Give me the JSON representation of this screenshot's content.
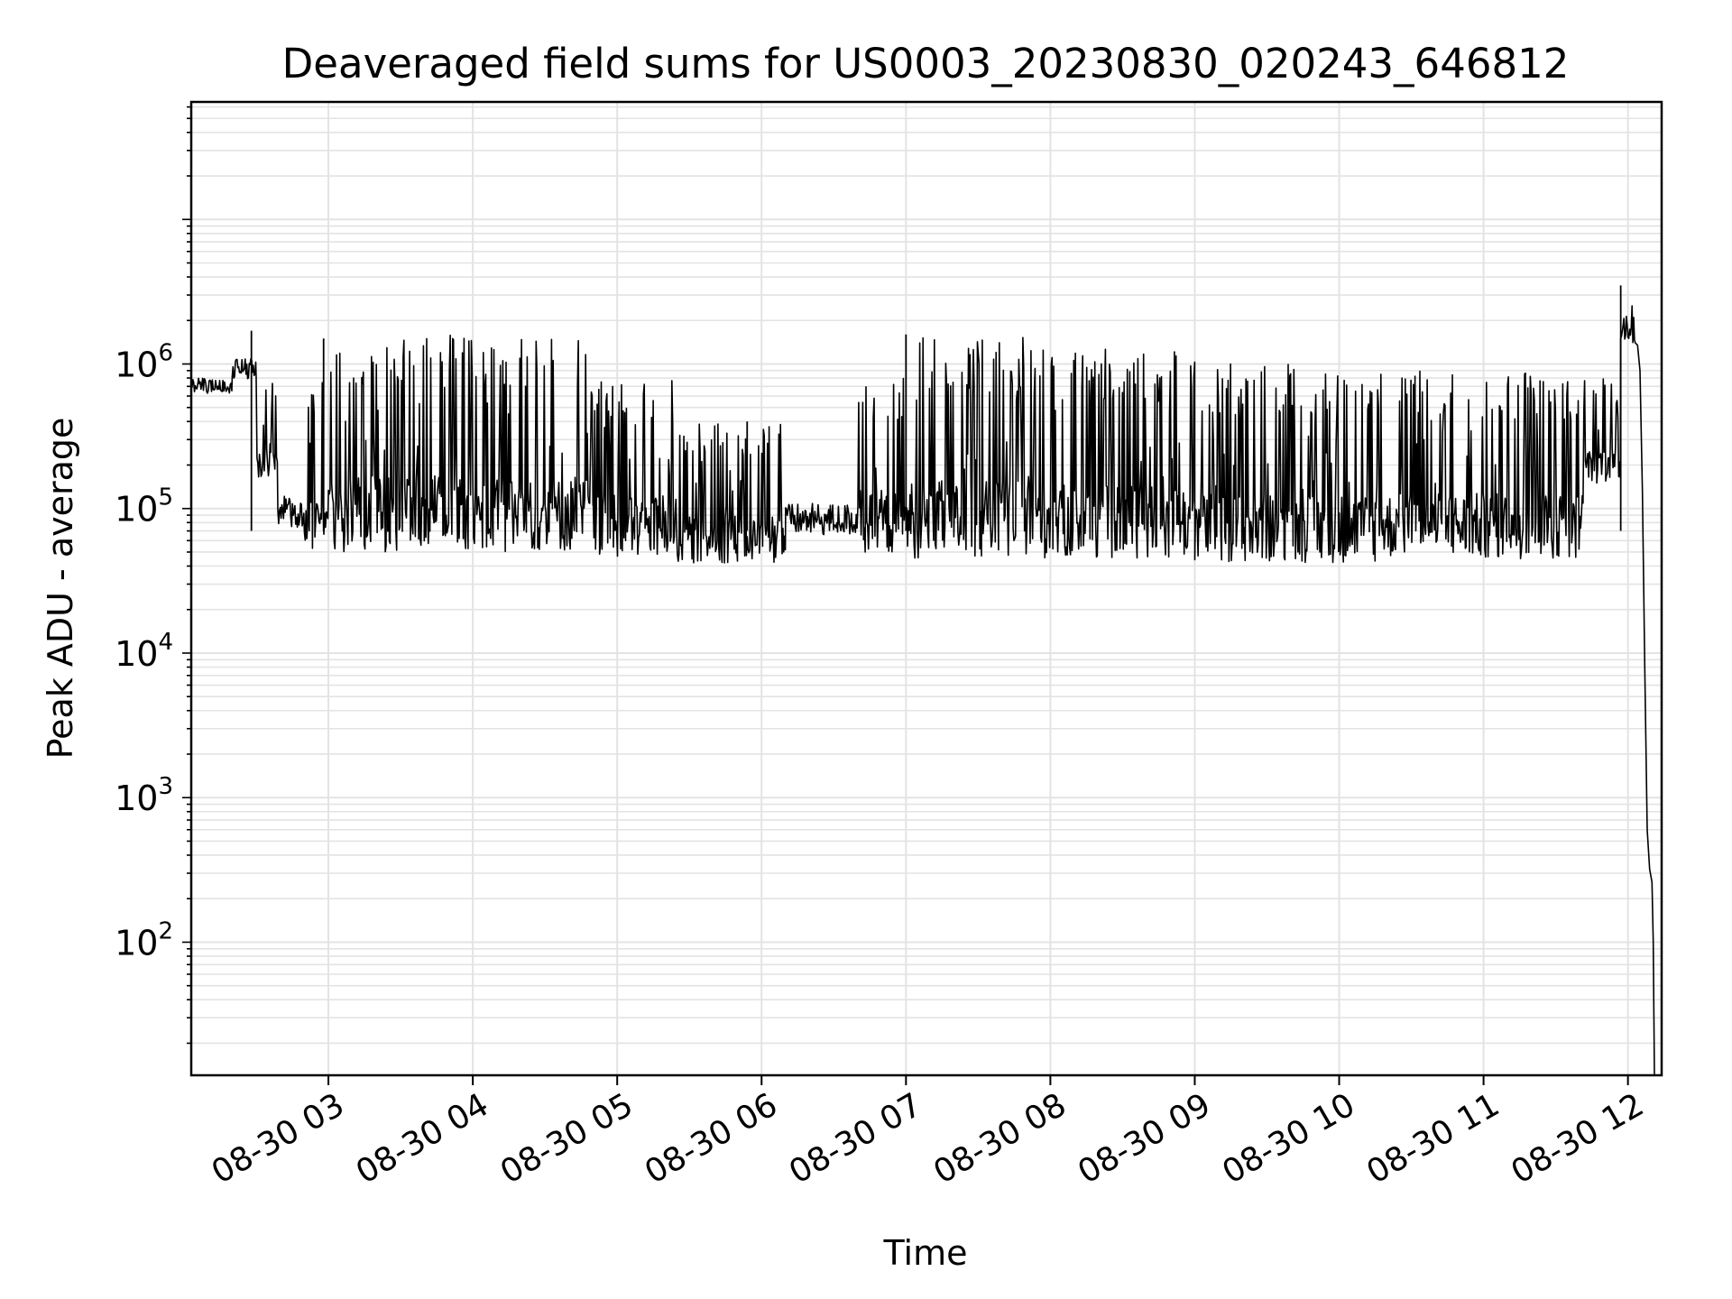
{
  "chart_data": {
    "type": "line",
    "title": "Deaveraged field sums for US0003_20230830_020243_646812",
    "xlabel": "Time",
    "ylabel": "Peak ADU - average",
    "x_scale": "time",
    "y_scale": "log",
    "xlim": [
      "2023-08-30 02:03",
      "2023-08-30 12:14"
    ],
    "ylim": [
      12,
      65000000
    ],
    "grid": true,
    "x_ticks": [
      {
        "value": "2023-08-30 03:00",
        "label": "08-30 03"
      },
      {
        "value": "2023-08-30 04:00",
        "label": "08-30 04"
      },
      {
        "value": "2023-08-30 05:00",
        "label": "08-30 05"
      },
      {
        "value": "2023-08-30 06:00",
        "label": "08-30 06"
      },
      {
        "value": "2023-08-30 07:00",
        "label": "08-30 07"
      },
      {
        "value": "2023-08-30 08:00",
        "label": "08-30 08"
      },
      {
        "value": "2023-08-30 09:00",
        "label": "08-30 09"
      },
      {
        "value": "2023-08-30 10:00",
        "label": "08-30 10"
      },
      {
        "value": "2023-08-30 11:00",
        "label": "08-30 11"
      },
      {
        "value": "2023-08-30 12:00",
        "label": "08-30 12"
      }
    ],
    "y_ticks": [
      {
        "value": 100,
        "base": "10",
        "exp": "2"
      },
      {
        "value": 1000,
        "base": "10",
        "exp": "3"
      },
      {
        "value": 10000,
        "base": "10",
        "exp": "4"
      },
      {
        "value": 100000,
        "base": "10",
        "exp": "5"
      },
      {
        "value": 1000000,
        "base": "10",
        "exp": "6"
      }
    ],
    "series": [
      {
        "color": "#000000",
        "segments": [
          {
            "start": "2023-08-30 02:03",
            "end": "2023-08-30 02:20",
            "low": 550000,
            "high": 900000
          },
          {
            "start": "2023-08-30 02:20",
            "end": "2023-08-30 02:30",
            "low": 650000,
            "high": 1300000
          },
          {
            "start": "2023-08-30 02:30",
            "end": "2023-08-30 02:39",
            "low": 160000,
            "high": 900000
          },
          {
            "start": "2023-08-30 02:39",
            "end": "2023-08-30 02:50",
            "low": 55000,
            "high": 160000
          },
          {
            "start": "2023-08-30 02:50",
            "end": "2023-08-30 03:00",
            "low": 50000,
            "high": 800000
          },
          {
            "start": "2023-08-30 03:00",
            "end": "2023-08-30 04:00",
            "low": 50000,
            "high": 1600000
          },
          {
            "start": "2023-08-30 04:00",
            "end": "2023-08-30 04:50",
            "low": 50000,
            "high": 1500000
          },
          {
            "start": "2023-08-30 04:50",
            "end": "2023-08-30 05:25",
            "low": 45000,
            "high": 800000
          },
          {
            "start": "2023-08-30 05:25",
            "end": "2023-08-30 06:10",
            "low": 42000,
            "high": 400000
          },
          {
            "start": "2023-08-30 06:10",
            "end": "2023-08-30 06:40",
            "low": 50000,
            "high": 140000
          },
          {
            "start": "2023-08-30 06:40",
            "end": "2023-08-30 07:00",
            "low": 48000,
            "high": 800000
          },
          {
            "start": "2023-08-30 07:00",
            "end": "2023-08-30 08:05",
            "low": 45000,
            "high": 1550000
          },
          {
            "start": "2023-08-30 08:05",
            "end": "2023-08-30 09:00",
            "low": 45000,
            "high": 1300000
          },
          {
            "start": "2023-08-30 09:00",
            "end": "2023-08-30 10:15",
            "low": 42000,
            "high": 1000000
          },
          {
            "start": "2023-08-30 10:15",
            "end": "2023-08-30 11:42",
            "low": 45000,
            "high": 900000
          },
          {
            "start": "2023-08-30 11:42",
            "end": "2023-08-30 11:57",
            "low": 150000,
            "high": 800000
          },
          {
            "start": "2023-08-30 11:57",
            "end": "2023-08-30 12:03",
            "low": 1000000,
            "high": 3500000
          }
        ],
        "tail": [
          {
            "t": "2023-08-30 12:03",
            "y": 1400000
          },
          {
            "t": "2023-08-30 12:04",
            "y": 1350000
          },
          {
            "t": "2023-08-30 12:05",
            "y": 900000
          },
          {
            "t": "2023-08-30 12:06",
            "y": 130000
          },
          {
            "t": "2023-08-30 12:07",
            "y": 8000
          },
          {
            "t": "2023-08-30 12:08",
            "y": 600
          },
          {
            "t": "2023-08-30 12:09",
            "y": 320
          },
          {
            "t": "2023-08-30 12:10",
            "y": 260
          },
          {
            "t": "2023-08-30 12:10.5",
            "y": 100
          },
          {
            "t": "2023-08-30 12:11",
            "y": 12
          }
        ],
        "spikes": [
          {
            "t": "2023-08-30 02:28",
            "y": 1700000
          },
          {
            "t": "2023-08-30 02:58",
            "y": 1500000
          },
          {
            "t": "2023-08-30 05:54",
            "y": 400000
          },
          {
            "t": "2023-08-30 07:00",
            "y": 1600000
          },
          {
            "t": "2023-08-30 11:57",
            "y": 3500000
          }
        ]
      }
    ]
  }
}
